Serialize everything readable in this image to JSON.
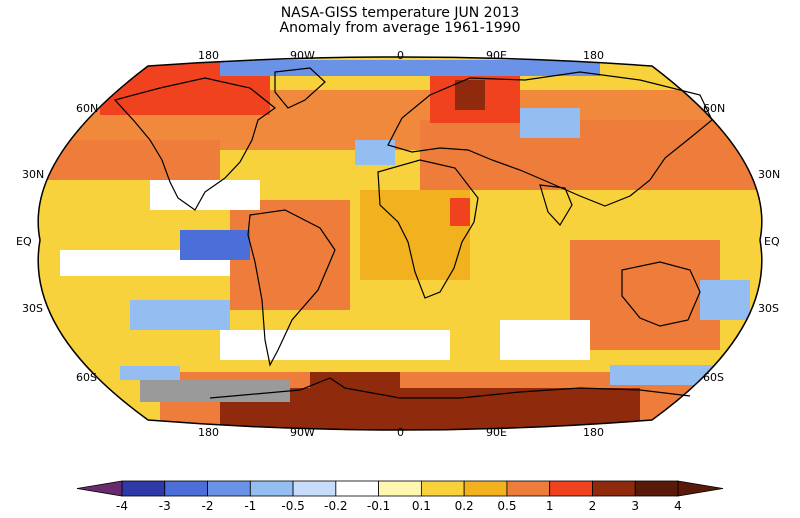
{
  "title_line1": "NASA-GISS temperature JUN 2013",
  "title_line2": "Anomaly from average 1961-1990",
  "lon_labels": [
    "180",
    "90W",
    "0",
    "90E",
    "180"
  ],
  "lat_labels": [
    "60N",
    "30N",
    "EQ",
    "30S",
    "60S"
  ],
  "colorbar": {
    "ticks": [
      "-4",
      "-3",
      "-2",
      "-1",
      "-0.5",
      "-0.2",
      "-0.1",
      "0.1",
      "0.2",
      "0.5",
      "1",
      "2",
      "3",
      "4"
    ],
    "colors": [
      "#6a2a6e",
      "#2f3aa8",
      "#4c6ed9",
      "#6a93e8",
      "#94bdf2",
      "#c6dcfa",
      "#ffffff",
      "#fff7b0",
      "#f7d23c",
      "#f2b21f",
      "#ee7d3c",
      "#f0421f",
      "#8f2a0c",
      "#5a1a0a"
    ]
  },
  "colors": {
    "land_outline": "#000000",
    "missing": "#9a9a9a",
    "ocean_warm": "#f2b21f"
  }
}
